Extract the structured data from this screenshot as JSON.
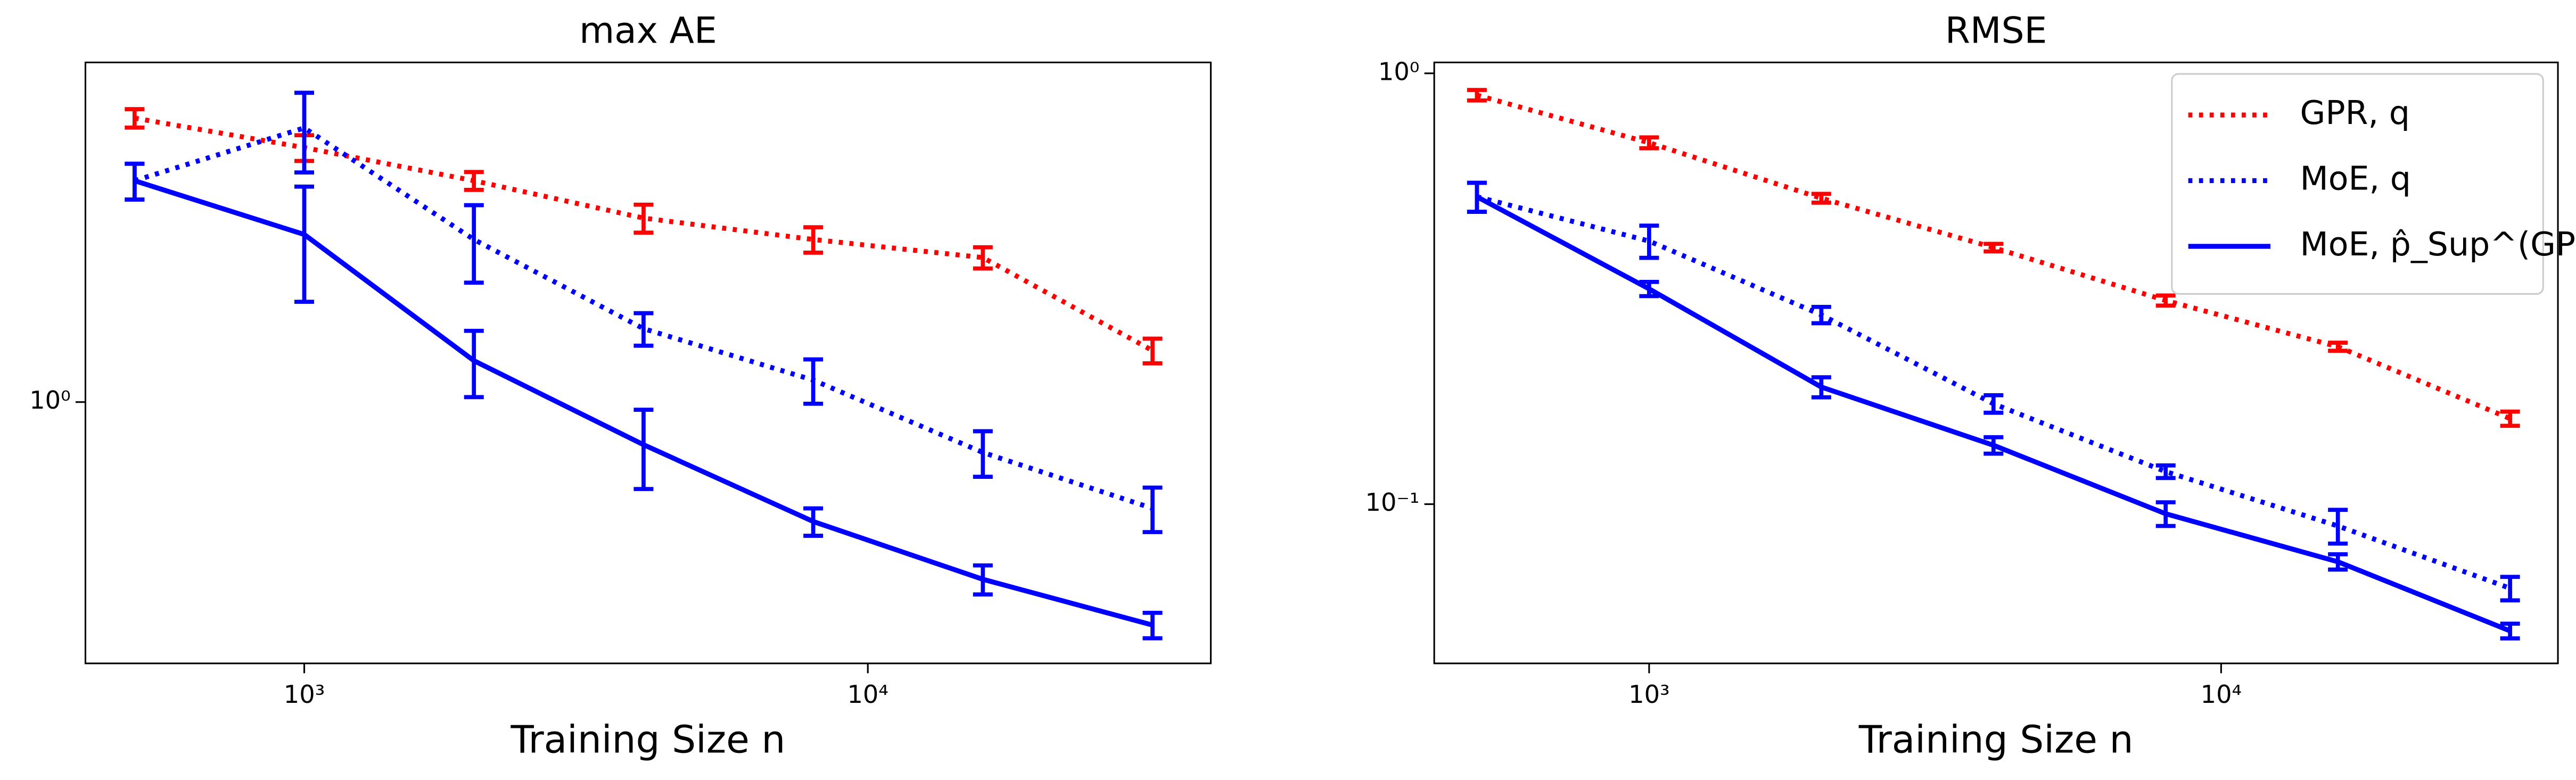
{
  "chart_data": [
    {
      "type": "line",
      "title": "max AE",
      "x_label": "Training Size n",
      "xscale": "log",
      "yscale": "log",
      "x": [
        500,
        1000,
        2000,
        4000,
        8000,
        16000,
        32000
      ],
      "xlim": [
        409,
        40600
      ],
      "ylim": [
        0.21,
        7.6
      ],
      "xticks": [
        {
          "value": 1000,
          "label": "10³"
        },
        {
          "value": 10000,
          "label": "10⁴"
        }
      ],
      "yticks": [
        {
          "value": 1,
          "label": "10⁰"
        }
      ],
      "series": [
        {
          "name": "GPR, q",
          "color": "#ff0000",
          "style": "dotted",
          "values": [
            5.45,
            4.57,
            3.75,
            3.0,
            2.64,
            2.37,
            1.36
          ],
          "errors": [
            0.3,
            0.35,
            0.2,
            0.25,
            0.2,
            0.15,
            0.1
          ]
        },
        {
          "name": "MoE, q",
          "color": "#0000ff",
          "style": "dotted",
          "values": [
            3.75,
            5.14,
            2.64,
            1.55,
            1.14,
            0.74,
            0.53
          ],
          "errors": [
            0.4,
            1.2,
            0.6,
            0.15,
            0.15,
            0.1,
            0.07
          ]
        },
        {
          "name": "MoE, p̂_Sup^(GPR,n)",
          "color": "#0000ff",
          "style": "solid",
          "values": [
            3.75,
            2.72,
            1.28,
            0.775,
            0.49,
            0.347,
            0.264
          ],
          "errors": [
            0.4,
            0.9,
            0.25,
            0.18,
            0.04,
            0.03,
            0.02
          ]
        }
      ]
    },
    {
      "type": "line",
      "title": "RMSE",
      "x_label": "Training Size n",
      "xscale": "log",
      "yscale": "log",
      "legend": "upper right",
      "x": [
        500,
        1000,
        2000,
        4000,
        8000,
        16000,
        32000
      ],
      "xlim": [
        421,
        38800
      ],
      "ylim": [
        0.0427,
        1.06
      ],
      "xticks": [
        {
          "value": 1000,
          "label": "10³"
        },
        {
          "value": 10000,
          "label": "10⁴"
        }
      ],
      "yticks": [
        {
          "value": 1,
          "label": "10⁰"
        },
        {
          "value": 0.1,
          "label": "10⁻¹"
        }
      ],
      "series": [
        {
          "name": "GPR, q",
          "color": "#ff0000",
          "style": "dotted",
          "values": [
            0.89,
            0.69,
            0.513,
            0.394,
            0.297,
            0.232,
            0.158
          ],
          "errors": [
            0.025,
            0.02,
            0.012,
            0.008,
            0.008,
            0.005,
            0.006
          ]
        },
        {
          "name": "MoE, q",
          "color": "#0000ff",
          "style": "dotted",
          "values": [
            0.517,
            0.408,
            0.275,
            0.171,
            0.119,
            0.089,
            0.0638
          ],
          "errors": [
            0.04,
            0.035,
            0.012,
            0.008,
            0.004,
            0.008,
            0.004
          ]
        },
        {
          "name": "MoE, p̂_Sup^(GPR,n)",
          "color": "#0000ff",
          "style": "solid",
          "values": [
            0.517,
            0.316,
            0.187,
            0.137,
            0.095,
            0.0735,
            0.0508
          ],
          "errors": [
            0.04,
            0.012,
            0.01,
            0.006,
            0.006,
            0.003,
            0.002
          ]
        }
      ]
    }
  ]
}
